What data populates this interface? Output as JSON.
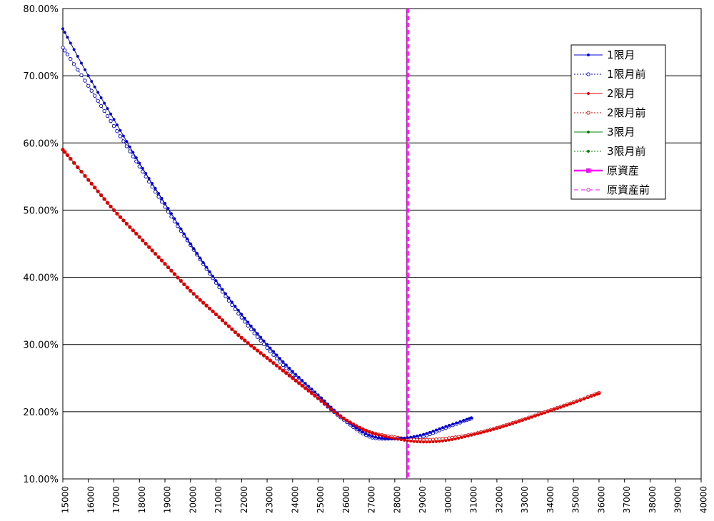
{
  "chart_data": {
    "type": "line",
    "title": "",
    "xlabel": "",
    "ylabel": "",
    "xlim": [
      15000,
      40000
    ],
    "ylim": [
      0.1,
      0.8
    ],
    "x_ticks": [
      15000,
      16000,
      17000,
      18000,
      19000,
      20000,
      21000,
      22000,
      23000,
      24000,
      25000,
      26000,
      27000,
      28000,
      29000,
      30000,
      31000,
      32000,
      33000,
      34000,
      35000,
      36000,
      37000,
      38000,
      39000,
      40000
    ],
    "x_tick_labels": [
      "15000",
      "16000",
      "17000",
      "18000",
      "19000",
      "20000",
      "21000",
      "22000",
      "23000",
      "24000",
      "25000",
      "26000",
      "27000",
      "28000",
      "29000",
      "30000",
      "31000",
      "32000",
      "33000",
      "34000",
      "35000",
      "36000",
      "37000",
      "38000",
      "39000",
      "40000"
    ],
    "y_ticks": [
      0.1,
      0.2,
      0.3,
      0.4,
      0.5,
      0.6,
      0.7,
      0.8
    ],
    "y_tick_labels": [
      "10.00%",
      "20.00%",
      "30.00%",
      "40.00%",
      "50.00%",
      "60.00%",
      "70.00%",
      "80.00%"
    ],
    "grid": "horizontal",
    "legend_position": "top-right",
    "series": [
      {
        "name": "1限月",
        "color": "#0000cc",
        "style": "solid",
        "marker": "filled-dot",
        "points": [
          [
            15000,
            0.77
          ],
          [
            16000,
            0.7
          ],
          [
            17000,
            0.635
          ],
          [
            18000,
            0.57
          ],
          [
            19000,
            0.51
          ],
          [
            20000,
            0.45
          ],
          [
            21000,
            0.395
          ],
          [
            22000,
            0.345
          ],
          [
            23000,
            0.3
          ],
          [
            24000,
            0.26
          ],
          [
            25000,
            0.225
          ],
          [
            26000,
            0.19
          ],
          [
            27000,
            0.165
          ],
          [
            28000,
            0.16
          ],
          [
            29000,
            0.165
          ],
          [
            30000,
            0.178
          ],
          [
            31000,
            0.191
          ]
        ]
      },
      {
        "name": "1限月前",
        "color": "#0000cc",
        "style": "dotted",
        "marker": "hollow-circle",
        "points": [
          [
            15000,
            0.742
          ],
          [
            16000,
            0.685
          ],
          [
            17000,
            0.625
          ],
          [
            18000,
            0.565
          ],
          [
            19000,
            0.505
          ],
          [
            20000,
            0.448
          ],
          [
            21000,
            0.392
          ],
          [
            22000,
            0.34
          ],
          [
            23000,
            0.295
          ],
          [
            24000,
            0.255
          ],
          [
            25000,
            0.22
          ],
          [
            26000,
            0.188
          ],
          [
            27000,
            0.163
          ],
          [
            28000,
            0.16
          ],
          [
            29000,
            0.162
          ],
          [
            30000,
            0.176
          ],
          [
            31000,
            0.19
          ]
        ]
      },
      {
        "name": "2限月",
        "color": "#dd0000",
        "style": "solid",
        "marker": "filled-dot",
        "points": [
          [
            15000,
            0.59
          ],
          [
            16000,
            0.545
          ],
          [
            17000,
            0.5
          ],
          [
            18000,
            0.46
          ],
          [
            19000,
            0.42
          ],
          [
            20000,
            0.38
          ],
          [
            21000,
            0.345
          ],
          [
            22000,
            0.31
          ],
          [
            23000,
            0.28
          ],
          [
            24000,
            0.25
          ],
          [
            25000,
            0.22
          ],
          [
            26000,
            0.19
          ],
          [
            27000,
            0.17
          ],
          [
            28000,
            0.16
          ],
          [
            29000,
            0.155
          ],
          [
            30000,
            0.157
          ],
          [
            31000,
            0.165
          ],
          [
            32000,
            0.175
          ],
          [
            33000,
            0.187
          ],
          [
            34000,
            0.2
          ],
          [
            35000,
            0.213
          ],
          [
            36000,
            0.227
          ]
        ]
      },
      {
        "name": "2限月前",
        "color": "#dd0000",
        "style": "dotted",
        "marker": "hollow-circle",
        "points": [
          [
            15000,
            0.59
          ],
          [
            16000,
            0.545
          ],
          [
            17000,
            0.5
          ],
          [
            18000,
            0.46
          ],
          [
            19000,
            0.42
          ],
          [
            20000,
            0.38
          ],
          [
            21000,
            0.345
          ],
          [
            22000,
            0.31
          ],
          [
            23000,
            0.28
          ],
          [
            24000,
            0.25
          ],
          [
            25000,
            0.22
          ],
          [
            26000,
            0.19
          ],
          [
            27000,
            0.17
          ],
          [
            28000,
            0.162
          ],
          [
            29000,
            0.158
          ],
          [
            30000,
            0.16
          ],
          [
            31000,
            0.166
          ],
          [
            32000,
            0.176
          ],
          [
            33000,
            0.188
          ],
          [
            34000,
            0.201
          ],
          [
            35000,
            0.214
          ],
          [
            36000,
            0.228
          ]
        ]
      },
      {
        "name": "3限月",
        "color": "#008000",
        "style": "solid",
        "marker": "filled-dot",
        "points": []
      },
      {
        "name": "3限月前",
        "color": "#008000",
        "style": "dotted",
        "marker": "filled-dot",
        "points": []
      },
      {
        "name": "原資産",
        "color": "#ff00ff",
        "style": "solid-thick",
        "marker": "filled-square",
        "points": []
      },
      {
        "name": "原資産前",
        "color": "#ff00ff",
        "style": "dashed",
        "marker": "hollow-circle",
        "points": []
      }
    ],
    "vertical_lines": [
      {
        "series": "原資産",
        "x": 28500,
        "color": "#ff00ff",
        "style": "solid"
      },
      {
        "series": "原資産前",
        "x": 28500,
        "color": "#ff00ff",
        "style": "dashed"
      }
    ]
  }
}
